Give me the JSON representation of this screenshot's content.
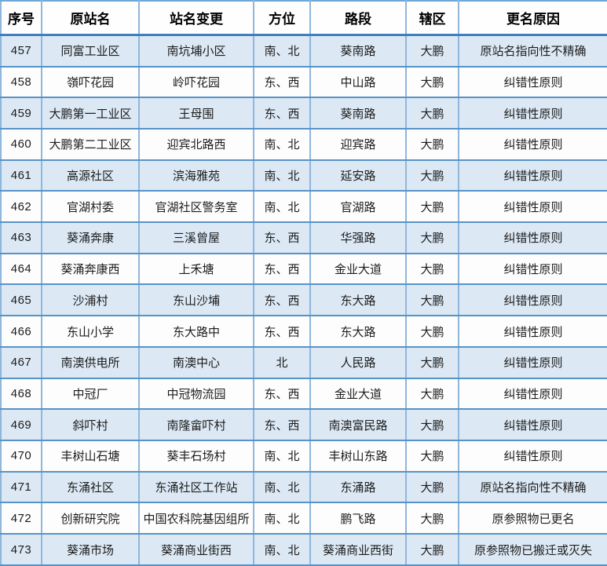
{
  "colors": {
    "grid_horizontal": "#5693c8",
    "grid_vertical": "#8fb6db",
    "header_divider": "#3e7fbd",
    "row_alt_background": "#dce9f5",
    "row_background": "#fdfdfd",
    "text": "#1c1c1c"
  },
  "table": {
    "headers": [
      "序号",
      "原站名",
      "站名变更",
      "方位",
      "路段",
      "辖区",
      "更名原因"
    ],
    "rows": [
      [
        "457",
        "同富工业区",
        "南坑埔小区",
        "南、北",
        "葵南路",
        "大鹏",
        "原站名指向性不精确"
      ],
      [
        "458",
        "嶺吓花园",
        "岭吓花园",
        "东、西",
        "中山路",
        "大鹏",
        "纠错性原则"
      ],
      [
        "459",
        "大鹏第一工业区",
        "王母围",
        "东、西",
        "葵南路",
        "大鹏",
        "纠错性原则"
      ],
      [
        "460",
        "大鹏第二工业区",
        "迎宾北路西",
        "南、北",
        "迎宾路",
        "大鹏",
        "纠错性原则"
      ],
      [
        "461",
        "高源社区",
        "滨海雅苑",
        "南、北",
        "延安路",
        "大鹏",
        "纠错性原则"
      ],
      [
        "462",
        "官湖村委",
        "官湖社区警务室",
        "南、北",
        "官湖路",
        "大鹏",
        "纠错性原则"
      ],
      [
        "463",
        "葵涌奔康",
        "三溪曾屋",
        "东、西",
        "华强路",
        "大鹏",
        "纠错性原则"
      ],
      [
        "464",
        "葵涌奔康西",
        "上禾塘",
        "东、西",
        "金业大道",
        "大鹏",
        "纠错性原则"
      ],
      [
        "465",
        "沙浦村",
        "东山沙埔",
        "东、西",
        "东大路",
        "大鹏",
        "纠错性原则"
      ],
      [
        "466",
        "东山小学",
        "东大路中",
        "东、西",
        "东大路",
        "大鹏",
        "纠错性原则"
      ],
      [
        "467",
        "南澳供电所",
        "南澳中心",
        "北",
        "人民路",
        "大鹏",
        "纠错性原则"
      ],
      [
        "468",
        "中冠厂",
        "中冠物流园",
        "东、西",
        "金业大道",
        "大鹏",
        "纠错性原则"
      ],
      [
        "469",
        "斜吓村",
        "南隆畲吓村",
        "东、西",
        "南澳富民路",
        "大鹏",
        "纠错性原则"
      ],
      [
        "470",
        "丰树山石塘",
        "葵丰石场村",
        "南、北",
        "丰树山东路",
        "大鹏",
        "纠错性原则"
      ],
      [
        "471",
        "东涌社区",
        "东涌社区工作站",
        "南、北",
        "东涌路",
        "大鹏",
        "原站名指向性不精确"
      ],
      [
        "472",
        "创新研究院",
        "中国农科院基因组所",
        "南、北",
        "鹏飞路",
        "大鹏",
        "原参照物已更名"
      ],
      [
        "473",
        "葵涌市场",
        "葵涌商业街西",
        "南、北",
        "葵涌商业西街",
        "大鹏",
        "原参照物已搬迁或灭失"
      ]
    ]
  }
}
